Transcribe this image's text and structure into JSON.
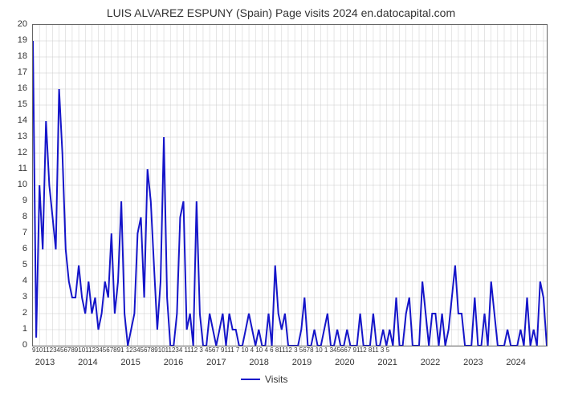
{
  "chart": {
    "type": "line",
    "title": "LUIS ALVAREZ ESPUNY (Spain) Page visits 2024 en.datocapital.com",
    "title_fontsize": 14,
    "background_color": "#ffffff",
    "grid_color": "#cccccc",
    "border_color": "#666666",
    "line_color": "#1515c9",
    "line_width": 2,
    "ylim": [
      0,
      20
    ],
    "ytick_step": 1,
    "y_ticks": [
      0,
      1,
      2,
      3,
      4,
      5,
      6,
      7,
      8,
      9,
      10,
      11,
      12,
      13,
      14,
      15,
      16,
      17,
      18,
      19,
      20
    ],
    "x_years": [
      "2013",
      "2014",
      "2015",
      "2016",
      "2017",
      "2018",
      "2019",
      "2020",
      "2021",
      "2022",
      "2023",
      "2024"
    ],
    "x_months_row": "91011234567891011234567891 1234567891011234 1112 3 4567 9111 7 10 4 10 4 6 81112 3 5678 10 1 345667 9112 811 3 5",
    "x_axis_title": "Visits",
    "legend_label": "Visits",
    "data": [
      19,
      0.5,
      10,
      6,
      14,
      10,
      8,
      6,
      16,
      12,
      6,
      4,
      3,
      3,
      5,
      3,
      2,
      4,
      2,
      3,
      1,
      2,
      4,
      3,
      7,
      2,
      4,
      9,
      2,
      0,
      1,
      2,
      7,
      8,
      3,
      11,
      9,
      5,
      1,
      4,
      13,
      3,
      0,
      0,
      2,
      8,
      9,
      1,
      2,
      0,
      9,
      2,
      0,
      0,
      2,
      1,
      0,
      1,
      2,
      0,
      2,
      1,
      1,
      0,
      0,
      1,
      2,
      1,
      0,
      1,
      0,
      0,
      2,
      0,
      5,
      2,
      1,
      2,
      0,
      0,
      0,
      0,
      1,
      3,
      0,
      0,
      1,
      0,
      0,
      1,
      2,
      0,
      0,
      1,
      0,
      0,
      1,
      0,
      0,
      0,
      2,
      0,
      0,
      0,
      2,
      0,
      0,
      1,
      0,
      1,
      0,
      3,
      0,
      0,
      2,
      3,
      0,
      0,
      0,
      4,
      2,
      0,
      2,
      2,
      0,
      2,
      0,
      1,
      3,
      5,
      2,
      2,
      0,
      0,
      0,
      3,
      0,
      0,
      2,
      0,
      4,
      2,
      0,
      0,
      0,
      1,
      0,
      0,
      0,
      1,
      0,
      3,
      0,
      1,
      0,
      4,
      3,
      0
    ]
  }
}
